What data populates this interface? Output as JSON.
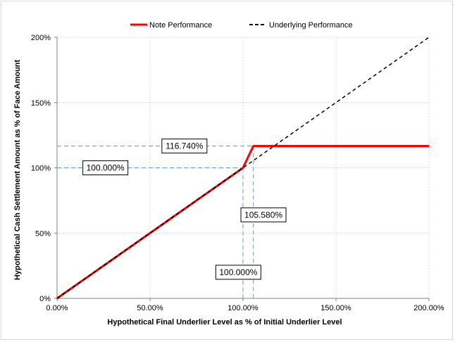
{
  "chart_data": {
    "type": "line",
    "title": "",
    "xlabel": "Hypothetical Final Underlier Level as % of Initial Underlier Level",
    "ylabel": "Hypothetical Cash Settlement Amount as % of Face Amount",
    "xlim": [
      0,
      200
    ],
    "ylim": [
      0,
      200
    ],
    "x_ticks": [
      0,
      50,
      100,
      150,
      200
    ],
    "y_ticks": [
      0,
      50,
      100,
      150,
      200
    ],
    "x_tick_labels": [
      "0.00%",
      "50.00%",
      "100.00%",
      "150.00%",
      "200.00%"
    ],
    "y_tick_labels": [
      "0%",
      "50%",
      "100%",
      "150%",
      "200%"
    ],
    "grid": true,
    "legend_position": "top",
    "series": [
      {
        "name": "Note Performance",
        "color": "#ff0000",
        "style": "solid",
        "points": [
          [
            0,
            0
          ],
          [
            100,
            100
          ],
          [
            105.58,
            116.74
          ],
          [
            200,
            116.74
          ]
        ]
      },
      {
        "name": "Underlying Performance",
        "color": "#000000",
        "style": "dashed",
        "points": [
          [
            0,
            0
          ],
          [
            200,
            200
          ]
        ]
      }
    ],
    "reference_lines": [
      {
        "from": [
          0,
          116.74
        ],
        "to": [
          105.58,
          116.74
        ]
      },
      {
        "from": [
          105.58,
          116.74
        ],
        "to": [
          105.58,
          0
        ]
      },
      {
        "from": [
          0,
          100
        ],
        "to": [
          100,
          100
        ]
      },
      {
        "from": [
          100,
          100
        ],
        "to": [
          100,
          0
        ]
      }
    ],
    "annotations": [
      {
        "text": "116.740%",
        "x": 68.5,
        "y": 116.74
      },
      {
        "text": "100.000%",
        "x": 26,
        "y": 100
      },
      {
        "text": "105.580%",
        "x": 111,
        "y": 64
      },
      {
        "text": "100.000%",
        "x": 97.5,
        "y": 20
      }
    ]
  }
}
